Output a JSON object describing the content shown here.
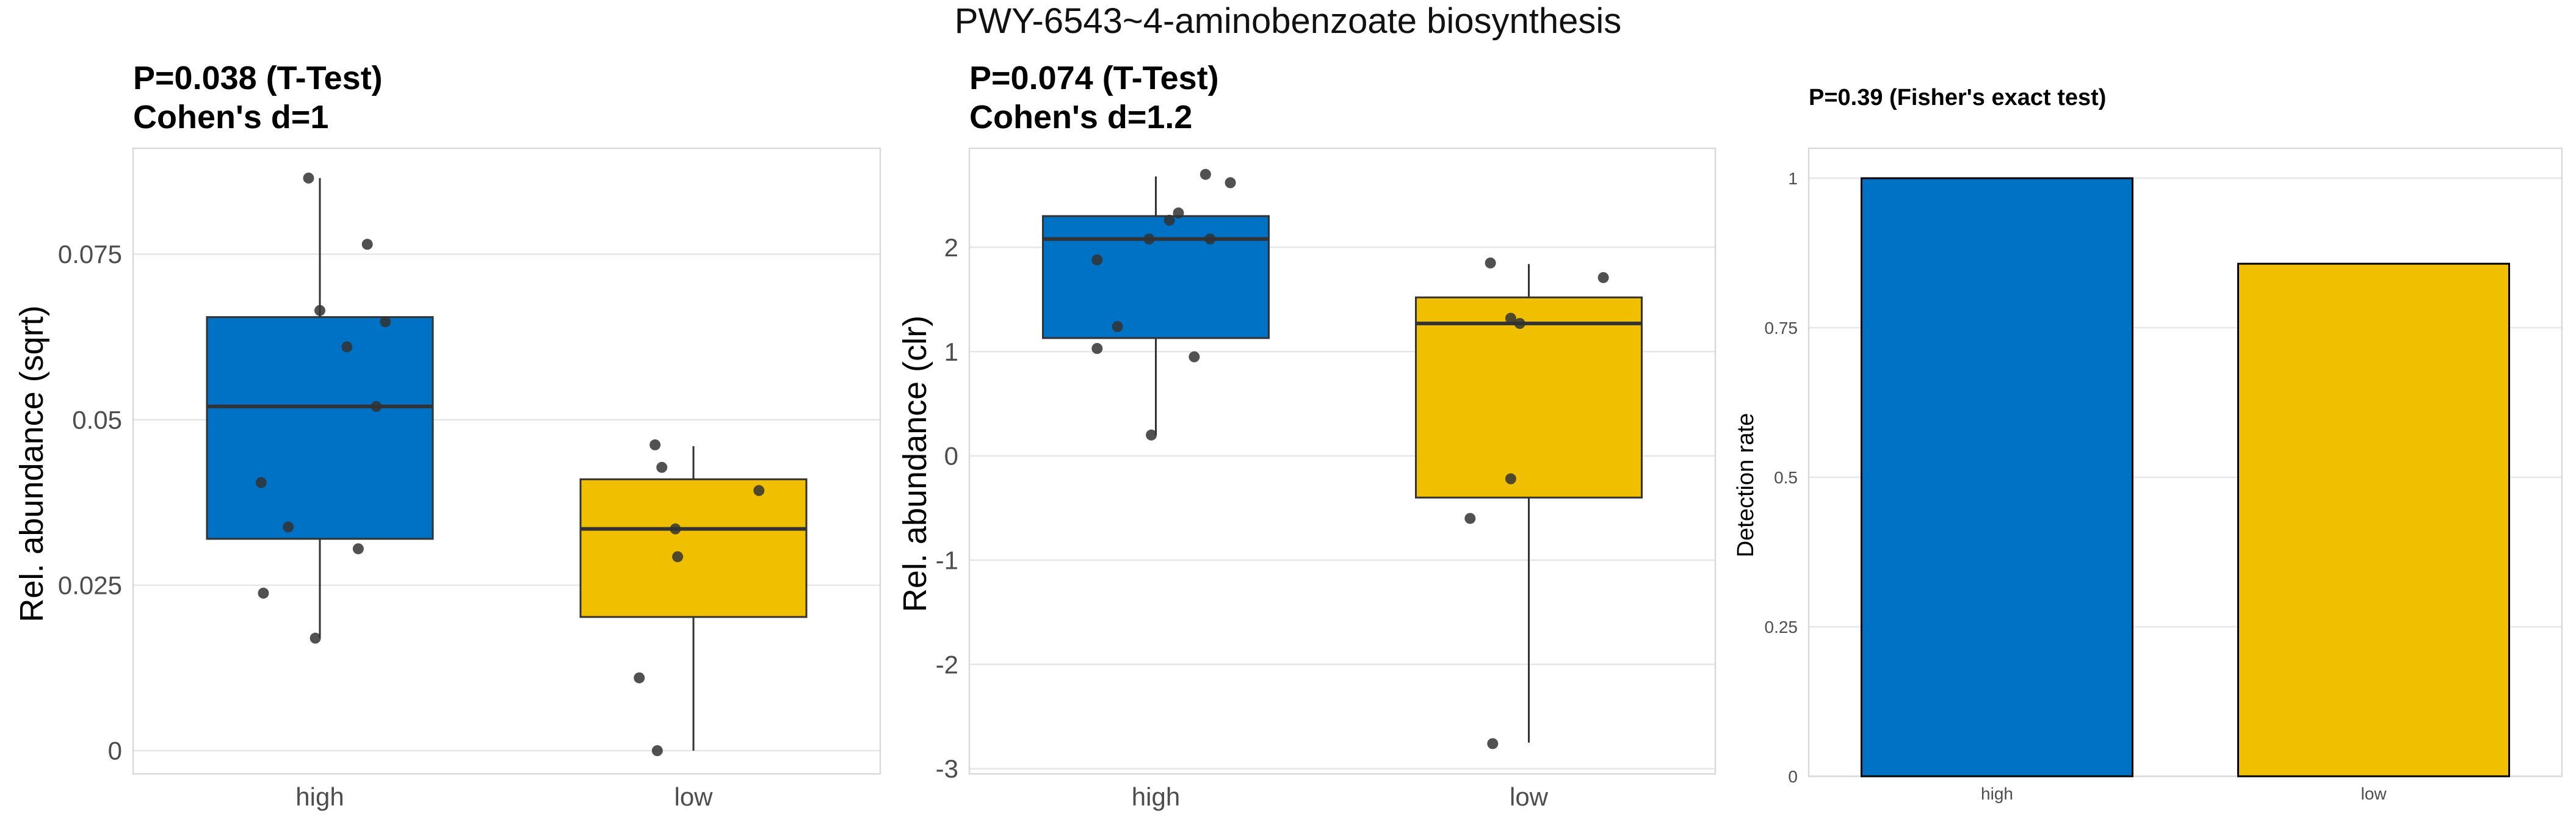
{
  "figure_title": "PWY-6543~4-aminobenzoate biosynthesis",
  "colors": {
    "high": "#0072C6",
    "low": "#F0C000",
    "grid": "#E6E6E6",
    "border": "#D9D9D9",
    "point": "#333333"
  },
  "chart_data": [
    {
      "type": "box",
      "title_line1": "P=0.038 (T-Test)",
      "title_line2": "Cohen's d=1",
      "ylabel": "Rel. abundance (sqrt)",
      "xlabel": "",
      "ylim": [
        -0.0035,
        0.091
      ],
      "yticks": [
        0,
        0.025,
        0.05,
        0.075
      ],
      "ytick_labels": [
        "0",
        "0.025",
        "0.05",
        "0.075"
      ],
      "categories": [
        "high",
        "low"
      ],
      "boxes": [
        {
          "name": "high",
          "q1": 0.032,
          "median": 0.052,
          "q3": 0.0655,
          "whisker_low": 0.017,
          "whisker_high": 0.0865,
          "points": [
            [
              -0.05,
              0.0865
            ],
            [
              0.21,
              0.0765
            ],
            [
              0.0,
              0.0665
            ],
            [
              0.29,
              0.0648
            ],
            [
              0.12,
              0.061
            ],
            [
              0.25,
              0.052
            ],
            [
              -0.26,
              0.0405
            ],
            [
              -0.14,
              0.0338
            ],
            [
              0.17,
              0.0305
            ],
            [
              -0.25,
              0.0238
            ],
            [
              -0.02,
              0.017
            ]
          ]
        },
        {
          "name": "low",
          "q1": 0.0202,
          "median": 0.0335,
          "q3": 0.041,
          "whisker_low": 0.0,
          "whisker_high": 0.046,
          "points": [
            [
              -0.17,
              0.0462
            ],
            [
              -0.14,
              0.0428
            ],
            [
              0.29,
              0.0393
            ],
            [
              -0.08,
              0.0335
            ],
            [
              -0.07,
              0.0293
            ],
            [
              -0.24,
              0.011
            ],
            [
              -0.16,
              0.0
            ]
          ]
        }
      ]
    },
    {
      "type": "box",
      "title_line1": "P=0.074 (T-Test)",
      "title_line2": "Cohen's d=1.2",
      "ylabel": "Rel. abundance (clr)",
      "xlabel": "",
      "ylim": [
        -3.05,
        2.95
      ],
      "yticks": [
        -3,
        -2,
        -1,
        0,
        1,
        2
      ],
      "ytick_labels": [
        "-3",
        "-2",
        "-1",
        "0",
        "1",
        "2"
      ],
      "categories": [
        "high",
        "low"
      ],
      "boxes": [
        {
          "name": "high",
          "q1": 1.13,
          "median": 2.08,
          "q3": 2.3,
          "whisker_low": 0.2,
          "whisker_high": 2.68,
          "points": [
            [
              0.22,
              2.7
            ],
            [
              0.33,
              2.62
            ],
            [
              0.1,
              2.33
            ],
            [
              0.06,
              2.26
            ],
            [
              -0.26,
              1.88
            ],
            [
              -0.03,
              2.08
            ],
            [
              0.24,
              2.08
            ],
            [
              -0.17,
              1.24
            ],
            [
              -0.26,
              1.03
            ],
            [
              0.17,
              0.95
            ],
            [
              -0.02,
              0.2
            ]
          ]
        },
        {
          "name": "low",
          "q1": -0.4,
          "median": 1.27,
          "q3": 1.52,
          "whisker_low": -2.75,
          "whisker_high": 1.84,
          "points": [
            [
              -0.17,
              1.85
            ],
            [
              0.33,
              1.71
            ],
            [
              -0.08,
              1.32
            ],
            [
              -0.04,
              1.27
            ],
            [
              -0.08,
              -0.22
            ],
            [
              -0.26,
              -0.6
            ],
            [
              -0.16,
              -2.76
            ]
          ]
        }
      ]
    },
    {
      "type": "bar",
      "title_line1": "P=0.39 (Fisher's exact test)",
      "ylabel": "Detection rate",
      "xlabel": "",
      "ylim": [
        0,
        1.05
      ],
      "yticks": [
        0,
        0.25,
        0.5,
        0.75,
        1
      ],
      "ytick_labels": [
        "0",
        "0.25",
        "0.5",
        "0.75",
        "1"
      ],
      "categories": [
        "high",
        "low"
      ],
      "values": [
        1.0,
        0.857
      ]
    }
  ]
}
